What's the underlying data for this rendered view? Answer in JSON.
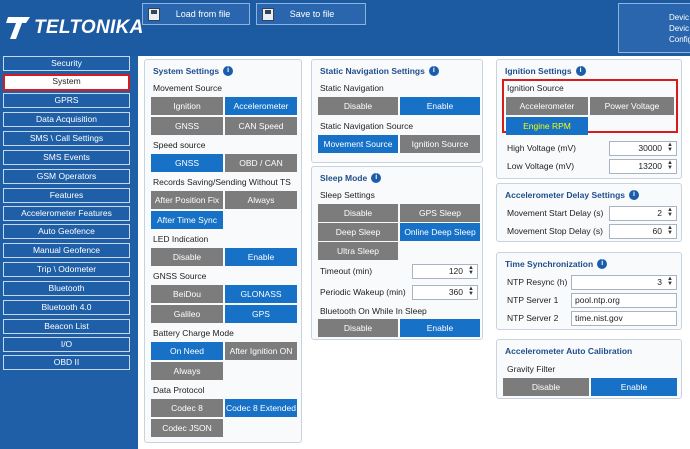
{
  "header": {
    "logo_text": "TELTONIKA",
    "load_label": "Load from file",
    "save_label": "Save to file",
    "device_lines": [
      "Devic",
      "Devic",
      "Config"
    ]
  },
  "sidebar": {
    "items": [
      "Security",
      "System",
      "GPRS",
      "Data Acquisition",
      "SMS \\ Call Settings",
      "SMS Events",
      "GSM Operators",
      "Features",
      "Accelerometer Features",
      "Auto Geofence",
      "Manual Geofence",
      "Trip \\ Odometer",
      "Bluetooth",
      "Bluetooth 4.0",
      "Beacon List",
      "I/O",
      "OBD II"
    ],
    "active_index": 1
  },
  "system_settings": {
    "title": "System Settings",
    "movement_source": {
      "label": "Movement Source",
      "options": [
        "Ignition",
        "Accelerometer",
        "GNSS",
        "CAN Speed"
      ]
    },
    "speed_source": {
      "label": "Speed source",
      "options": [
        "GNSS",
        "OBD / CAN"
      ]
    },
    "records_saving": {
      "label": "Records Saving/Sending Without TS",
      "options": [
        "After Position Fix",
        "Always",
        "After Time Sync"
      ]
    },
    "led_indication": {
      "label": "LED Indication",
      "options": [
        "Disable",
        "Enable"
      ]
    },
    "gnss_source": {
      "label": "GNSS Source",
      "options": [
        "BeiDou",
        "GLONASS",
        "Galileo",
        "GPS"
      ]
    },
    "battery_charge": {
      "label": "Battery Charge Mode",
      "options": [
        "On Need",
        "After Ignition ON",
        "Always"
      ]
    },
    "data_protocol": {
      "label": "Data Protocol",
      "options": [
        "Codec 8",
        "Codec 8 Extended",
        "Codec JSON"
      ]
    }
  },
  "static_nav": {
    "title": "Static Navigation Settings",
    "static_label": "Static Navigation",
    "static_options": [
      "Disable",
      "Enable"
    ],
    "source_label": "Static Navigation Source",
    "source_options": [
      "Movement Source",
      "Ignition Source"
    ]
  },
  "sleep_mode": {
    "title": "Sleep Mode",
    "settings_label": "Sleep Settings",
    "options": [
      "Disable",
      "GPS Sleep",
      "Deep Sleep",
      "Online Deep Sleep",
      "Ultra Sleep"
    ],
    "timeout_label": "Timeout   (min)",
    "timeout_value": "120",
    "wakeup_label": "Periodic Wakeup   (min)",
    "wakeup_value": "360",
    "bt_label": "Bluetooth On While In Sleep",
    "bt_options": [
      "Disable",
      "Enable"
    ]
  },
  "ignition": {
    "title": "Ignition Settings",
    "source_label": "Ignition Source",
    "source_options": [
      "Accelerometer",
      "Power Voltage",
      "Engine RPM"
    ],
    "high_label": "High Voltage   (mV)",
    "high_value": "30000",
    "low_label": "Low Voltage   (mV)",
    "low_value": "13200"
  },
  "accel_delay": {
    "title": "Accelerometer Delay Settings",
    "start_label": "Movement Start Delay   (s)",
    "start_value": "2",
    "stop_label": "Movement Stop Delay   (s)",
    "stop_value": "60"
  },
  "time_sync": {
    "title": "Time Synchronization",
    "resync_label": "NTP Resync   (h)",
    "resync_value": "3",
    "server1_label": "NTP Server 1",
    "server1_value": "pool.ntp.org",
    "server2_label": "NTP Server 2",
    "server2_value": "time.nist.gov"
  },
  "auto_calib": {
    "title": "Accelerometer Auto Calibration",
    "gravity_label": "Gravity Filter",
    "options": [
      "Disable",
      "Enable"
    ]
  },
  "colors": {
    "accent": "#1671c7",
    "inactive": "#7c7c7c",
    "background": "#1f5fa8",
    "highlight": "#d81b1b",
    "selected_text": "#f4ff00"
  }
}
